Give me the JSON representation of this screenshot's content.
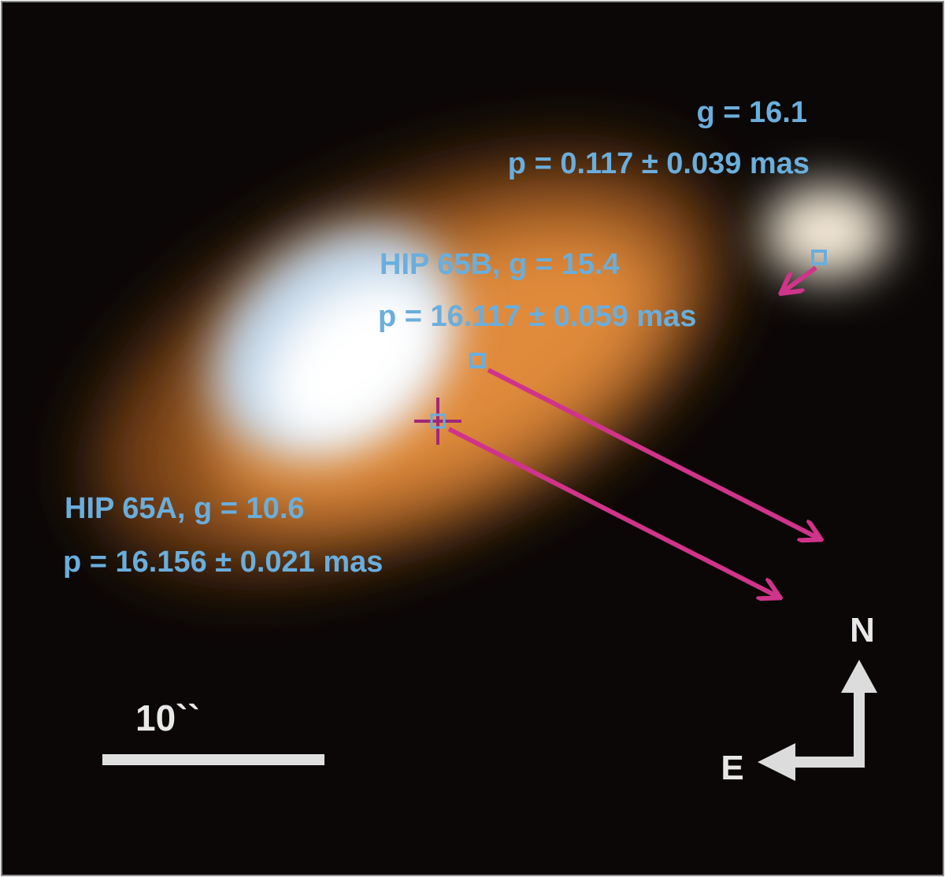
{
  "labels": {
    "top_star": {
      "magnitude": "g = 16.1",
      "parallax": "p = 0.117 ± 0.039 mas"
    },
    "hip_65b": {
      "magnitude": "HIP 65B, g = 15.4",
      "parallax": "p = 16.117 ± 0.059 mas"
    },
    "hip_65a": {
      "magnitude": "HIP 65A, g = 10.6",
      "parallax": "p = 16.156 ± 0.021 mas"
    }
  },
  "scale_bar": {
    "label": "10``"
  },
  "compass": {
    "north": "N",
    "east": "E"
  }
}
